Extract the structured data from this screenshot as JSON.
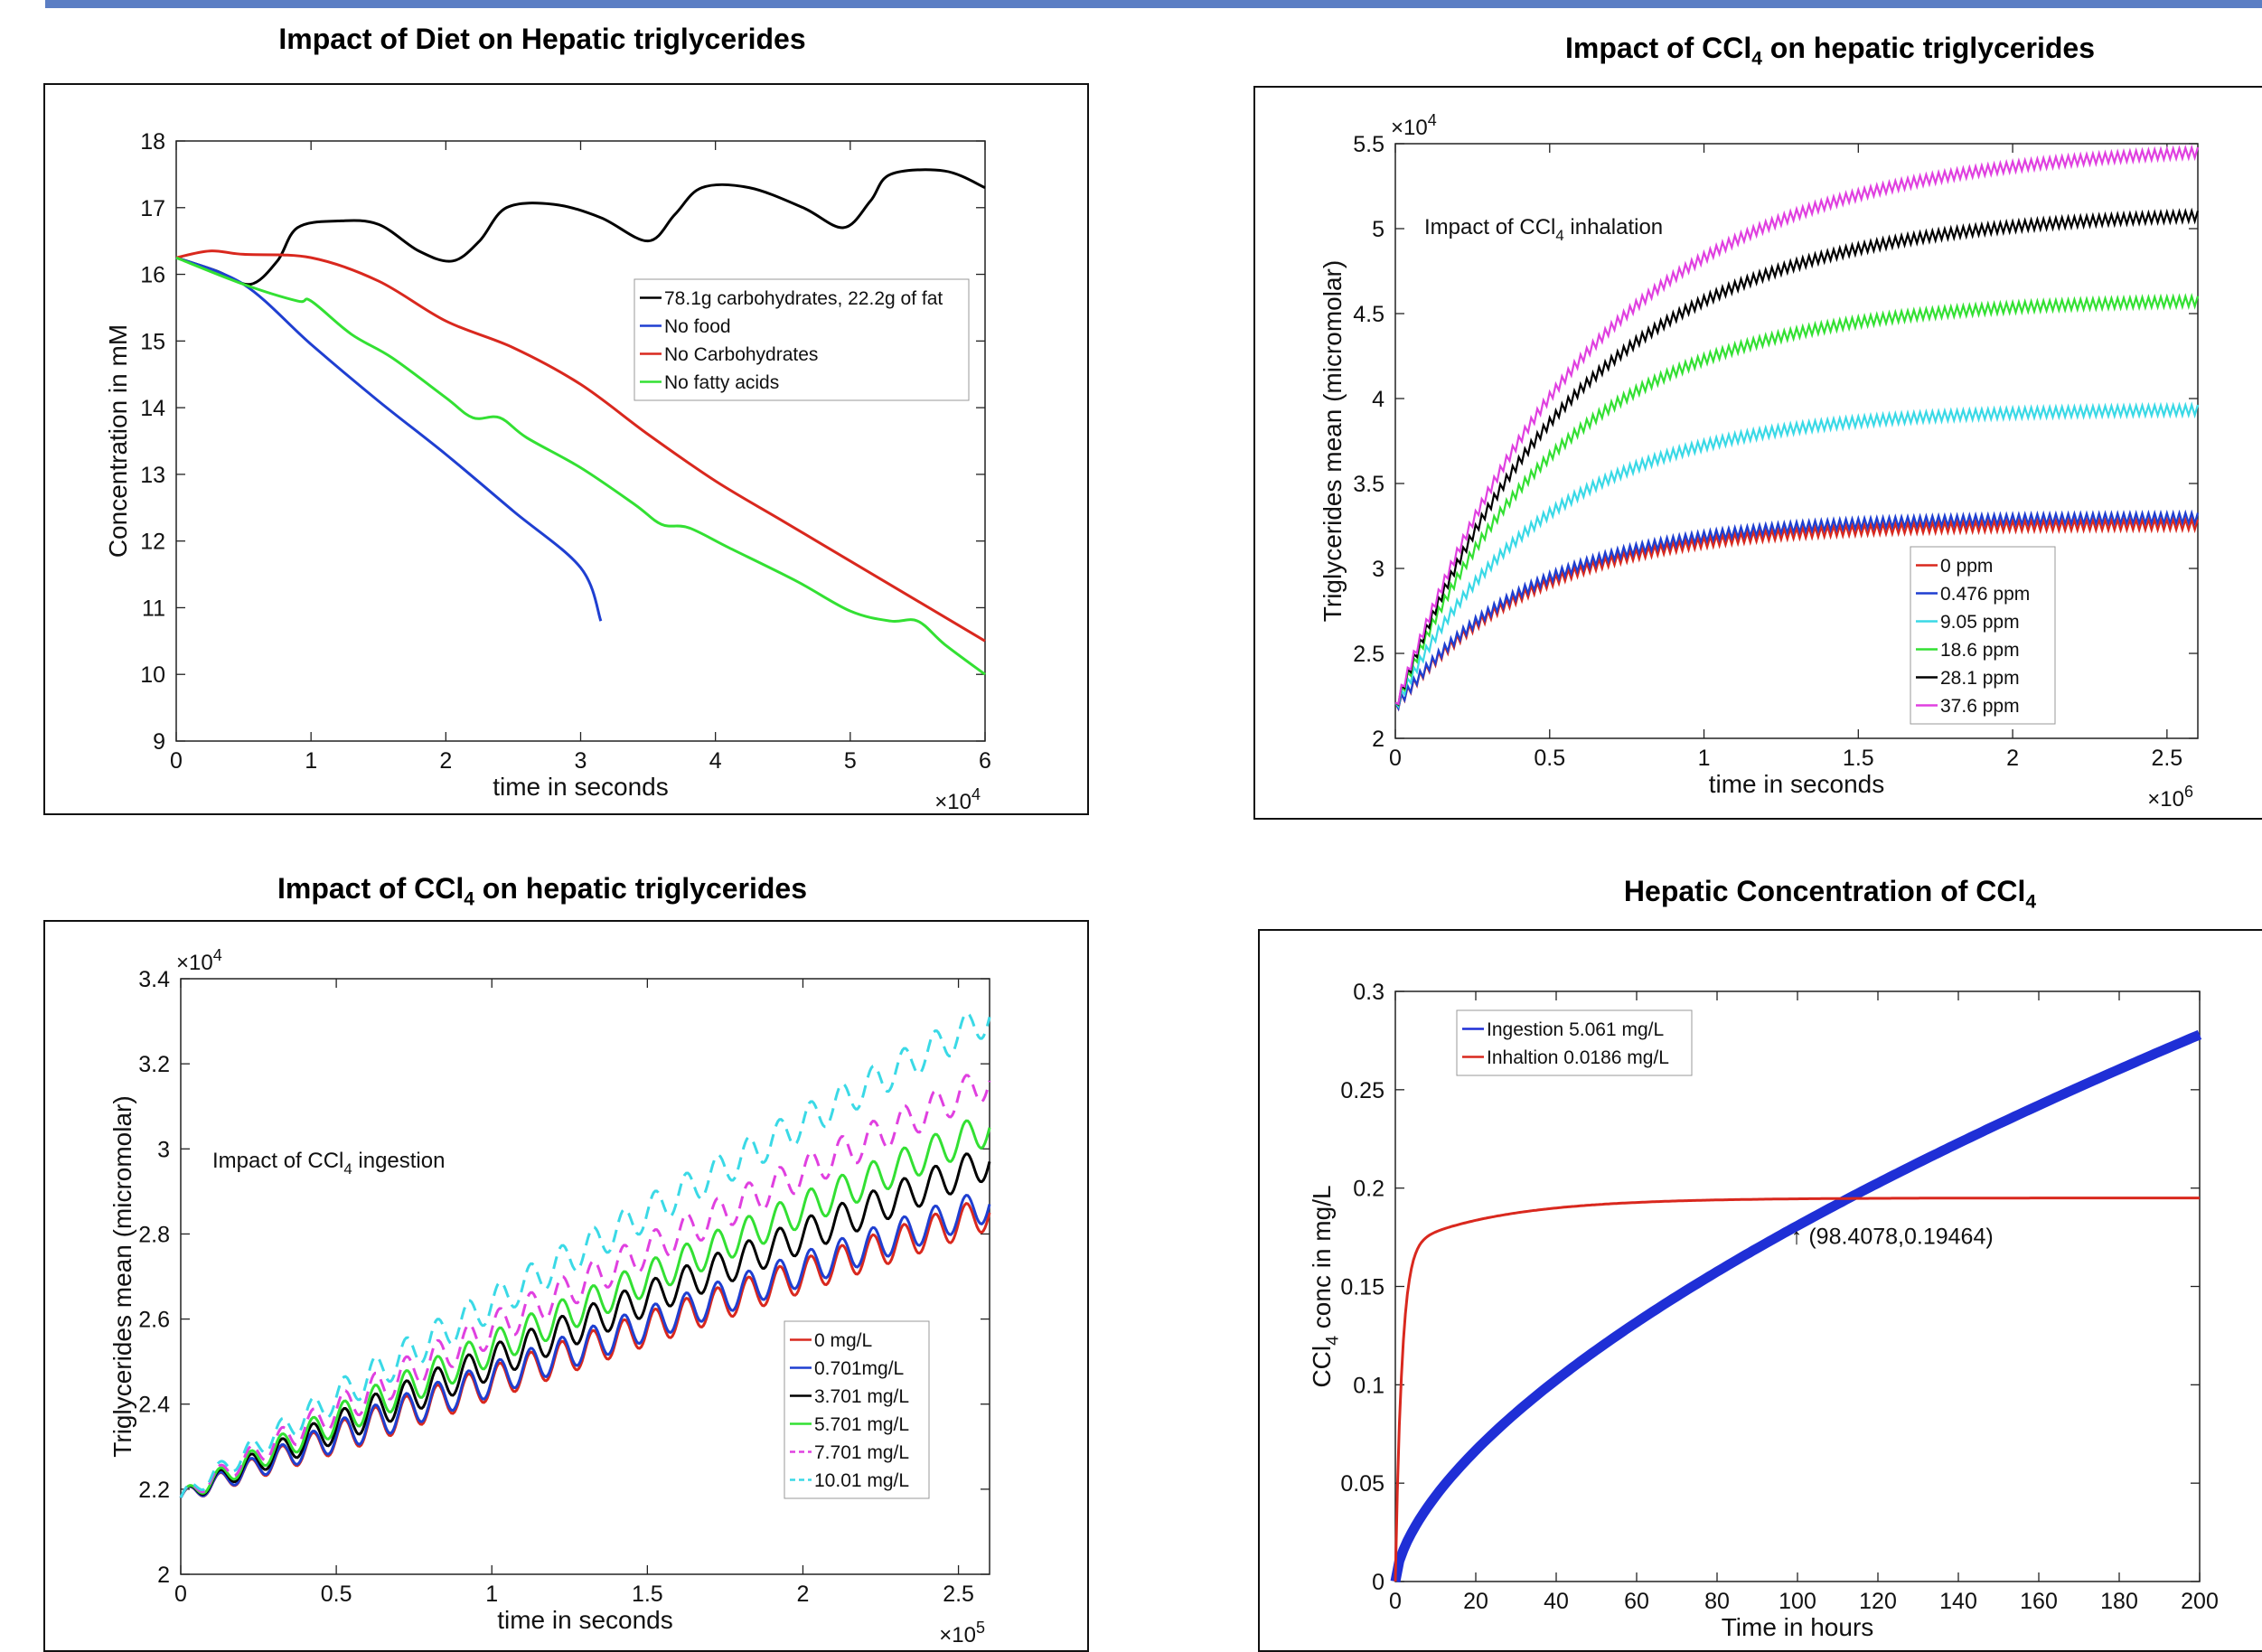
{
  "panels": {
    "p1": {
      "title": "Impact of Diet on Hepatic triglycerides"
    },
    "p2": {
      "title_pre": "Impact of CCl",
      "title_sub": "4",
      "title_post": " on hepatic triglycerides"
    },
    "p3": {
      "title_pre": "Impact of CCl",
      "title_sub": "4",
      "title_post": " on hepatic triglycerides"
    },
    "p4": {
      "title_pre": "Hepatic Concentration of CCl",
      "title_sub": "4",
      "title_post": ""
    }
  },
  "chart_data": [
    {
      "id": "diet",
      "type": "line",
      "xlabel": "time in seconds",
      "ylabel": "Concentration in mM",
      "x_multiplier": "×10^4",
      "xlim": [
        0,
        6
      ],
      "ylim": [
        9,
        18
      ],
      "xticks": [
        0,
        1,
        2,
        3,
        4,
        5,
        6
      ],
      "yticks": [
        9,
        10,
        11,
        12,
        13,
        14,
        15,
        16,
        17,
        18
      ],
      "legend_position": "top-right",
      "series": [
        {
          "name": "78.1g carbohydrates, 22.2g of fat",
          "color": "#000000",
          "points": [
            [
              0,
              16.25
            ],
            [
              0.3,
              16.05
            ],
            [
              0.55,
              15.85
            ],
            [
              0.75,
              16.2
            ],
            [
              0.9,
              16.7
            ],
            [
              1.2,
              16.8
            ],
            [
              1.5,
              16.75
            ],
            [
              1.8,
              16.35
            ],
            [
              2.05,
              16.2
            ],
            [
              2.25,
              16.5
            ],
            [
              2.45,
              17.0
            ],
            [
              2.8,
              17.05
            ],
            [
              3.15,
              16.85
            ],
            [
              3.5,
              16.5
            ],
            [
              3.7,
              16.9
            ],
            [
              3.9,
              17.3
            ],
            [
              4.25,
              17.3
            ],
            [
              4.65,
              17.0
            ],
            [
              4.95,
              16.7
            ],
            [
              5.15,
              17.1
            ],
            [
              5.3,
              17.5
            ],
            [
              5.7,
              17.55
            ],
            [
              6.0,
              17.3
            ]
          ]
        },
        {
          "name": "No food",
          "color": "#1f3fd1",
          "points": [
            [
              0,
              16.25
            ],
            [
              0.5,
              15.85
            ],
            [
              1.0,
              14.95
            ],
            [
              1.5,
              14.1
            ],
            [
              2.0,
              13.3
            ],
            [
              2.5,
              12.45
            ],
            [
              3.0,
              11.6
            ],
            [
              3.15,
              10.8
            ]
          ]
        },
        {
          "name": "No Carbohydrates",
          "color": "#d9281e",
          "points": [
            [
              0,
              16.25
            ],
            [
              0.25,
              16.35
            ],
            [
              0.5,
              16.3
            ],
            [
              1.0,
              16.25
            ],
            [
              1.5,
              15.9
            ],
            [
              2.0,
              15.3
            ],
            [
              2.5,
              14.9
            ],
            [
              3.0,
              14.35
            ],
            [
              3.5,
              13.6
            ],
            [
              4.0,
              12.9
            ],
            [
              4.5,
              12.3
            ],
            [
              5.0,
              11.7
            ],
            [
              5.5,
              11.1
            ],
            [
              6.0,
              10.5
            ]
          ]
        },
        {
          "name": "No fatty acids",
          "color": "#33e033",
          "points": [
            [
              0,
              16.25
            ],
            [
              0.5,
              15.85
            ],
            [
              0.9,
              15.6
            ],
            [
              1.0,
              15.6
            ],
            [
              1.3,
              15.1
            ],
            [
              1.6,
              14.75
            ],
            [
              2.0,
              14.15
            ],
            [
              2.2,
              13.85
            ],
            [
              2.4,
              13.85
            ],
            [
              2.6,
              13.55
            ],
            [
              3.0,
              13.1
            ],
            [
              3.4,
              12.55
            ],
            [
              3.6,
              12.25
            ],
            [
              3.8,
              12.2
            ],
            [
              4.1,
              11.9
            ],
            [
              4.6,
              11.4
            ],
            [
              5.0,
              10.95
            ],
            [
              5.3,
              10.8
            ],
            [
              5.5,
              10.8
            ],
            [
              5.7,
              10.45
            ],
            [
              6.0,
              10.0
            ]
          ]
        }
      ]
    },
    {
      "id": "inhalation",
      "type": "line",
      "xlabel": "time in seconds",
      "ylabel": "Triglycerides mean (micromolar)",
      "x_multiplier": "×10^6",
      "y_multiplier": "×10^4",
      "xlim": [
        0,
        2.6
      ],
      "ylim": [
        2,
        5.5
      ],
      "xticks": [
        0,
        0.5,
        1,
        1.5,
        2,
        2.5
      ],
      "yticks": [
        2,
        2.5,
        3,
        3.5,
        4,
        4.5,
        5,
        5.5
      ],
      "annotation_pre": "Impact of CCl",
      "annotation_sub": "4",
      "annotation_post": " inhalation",
      "legend_position": "bottom-right",
      "series": [
        {
          "name": "0 ppm",
          "color": "#d9281e",
          "plateau": 3.26,
          "rate": 2.3
        },
        {
          "name": "0.476 ppm",
          "color": "#1f3fd1",
          "plateau": 3.3,
          "rate": 2.3
        },
        {
          "name": "9.05 ppm",
          "color": "#3ad9e6",
          "plateau": 3.94,
          "rate": 2.1
        },
        {
          "name": "18.6 ppm",
          "color": "#33e033",
          "plateau": 4.59,
          "rate": 1.9
        },
        {
          "name": "28.1 ppm",
          "color": "#000000",
          "plateau": 5.11,
          "rate": 1.7
        },
        {
          "name": "37.6 ppm",
          "color": "#e040e0",
          "plateau": 5.5,
          "rate": 1.6
        }
      ]
    },
    {
      "id": "ingestion",
      "type": "line",
      "xlabel": "time in seconds",
      "ylabel": "Triglycerides mean (micromolar)",
      "x_multiplier": "×10^5",
      "y_multiplier": "×10^4",
      "xlim": [
        0,
        2.6
      ],
      "ylim": [
        2,
        3.4
      ],
      "xticks": [
        0,
        0.5,
        1,
        1.5,
        2,
        2.5
      ],
      "yticks": [
        2,
        2.2,
        2.4,
        2.6,
        2.8,
        3,
        3.2,
        3.4
      ],
      "annotation_pre": "Impact of CCl",
      "annotation_sub": "4",
      "annotation_post": " ingestion",
      "legend_position": "bottom-right",
      "series": [
        {
          "name": "0 mg/L",
          "color": "#d9281e",
          "dash": false,
          "end": 2.85
        },
        {
          "name": "0.701mg/L",
          "color": "#1f3fd1",
          "dash": false,
          "end": 2.87
        },
        {
          "name": "3.701 mg/L",
          "color": "#000000",
          "dash": false,
          "end": 2.97
        },
        {
          "name": "5.701 mg/L",
          "color": "#33e033",
          "dash": false,
          "end": 3.05
        },
        {
          "name": "7.701 mg/L",
          "color": "#e040e0",
          "dash": true,
          "end": 3.16
        },
        {
          "name": "10.01 mg/L",
          "color": "#3ad9e6",
          "dash": true,
          "end": 3.31
        }
      ]
    },
    {
      "id": "ccl4",
      "type": "line",
      "xlabel": "Time in hours",
      "ylabel_pre": "CCl",
      "ylabel_sub": "4",
      "ylabel_post": " conc in mg/L",
      "xlim": [
        0,
        200
      ],
      "ylim": [
        0,
        0.3
      ],
      "xticks": [
        0,
        20,
        40,
        60,
        80,
        100,
        120,
        140,
        160,
        180,
        200
      ],
      "yticks": [
        0,
        0.05,
        0.1,
        0.15,
        0.2,
        0.25,
        0.3
      ],
      "yticklabels": [
        "0",
        "0.05",
        "0.1",
        "0.15",
        "0.2",
        "0.25",
        "0.3"
      ],
      "legend_position": "top-left",
      "annotation": "↑ (98.4078,0.19464)",
      "intersection": [
        98.4078,
        0.19464
      ],
      "series": [
        {
          "name": "Ingestion 5.061 mg/L",
          "color": "#1f2fd6",
          "end": 0.278
        },
        {
          "name": "Inhaltion 0.0186 mg/L",
          "color": "#d9281e",
          "plateau": 0.195
        }
      ]
    }
  ]
}
